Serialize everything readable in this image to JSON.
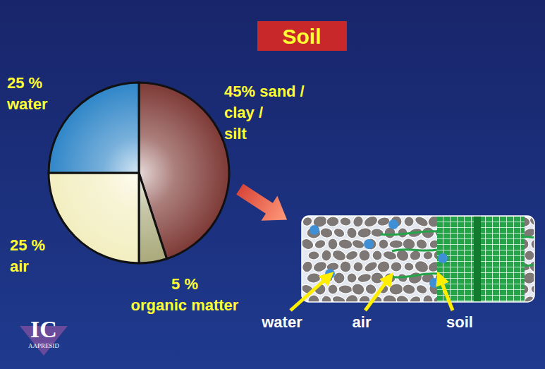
{
  "chart_data": {
    "type": "pie",
    "title": "Soil",
    "categories": [
      "sand / clay / silt",
      "organic matter",
      "air",
      "water"
    ],
    "values": [
      45,
      5,
      25,
      25
    ],
    "value_labels": [
      "45%",
      "5 %",
      "25 %",
      "25 %"
    ],
    "colors": [
      "#7e3a36",
      "#a9a97a",
      "#f3eec0",
      "#2f86c8"
    ],
    "data_labels": true,
    "annotations": [
      "water",
      "air",
      "soil"
    ]
  },
  "logo": {
    "text": "IC",
    "subtitle": "AAPRESID"
  }
}
